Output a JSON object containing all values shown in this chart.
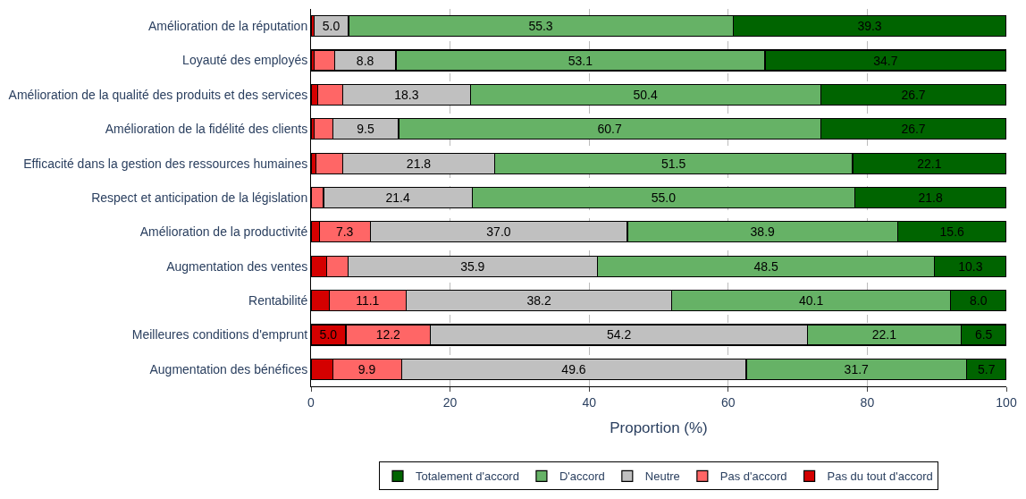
{
  "chart_data": {
    "type": "bar",
    "orientation": "horizontal",
    "stacked": true,
    "xlabel": "Proportion (%)",
    "xlim": [
      0,
      100
    ],
    "xticks": [
      0,
      20,
      40,
      60,
      80,
      100
    ],
    "grid": "x",
    "legend": "bottom",
    "categories": [
      "Amélioration de la réputation",
      "Loyauté des employés",
      "Amélioration de la qualité des produits et des services",
      "Amélioration de la fidélité des clients",
      "Efficacité dans la gestion des ressources humaines",
      "Respect et anticipation de la législation",
      "Amélioration de la productivité",
      "Augmentation des ventes",
      "Rentabilité",
      "Meilleures conditions d'emprunt",
      "Augmentation des bénéfices"
    ],
    "series": [
      {
        "name": "Pas du tout d'accord",
        "color": "#d40000",
        "values": [
          0.4,
          0.4,
          1.0,
          0.4,
          0.7,
          0,
          1.2,
          2.2,
          2.6,
          5.0,
          3.1
        ],
        "value_labels": [
          null,
          null,
          null,
          null,
          null,
          null,
          null,
          null,
          null,
          "5.0",
          null
        ]
      },
      {
        "name": "Pas d'accord",
        "color": "#ff6666",
        "values": [
          0,
          3.0,
          3.6,
          2.7,
          3.9,
          1.8,
          7.3,
          3.1,
          11.1,
          12.2,
          9.9
        ],
        "value_labels": [
          null,
          null,
          null,
          null,
          null,
          null,
          "7.3",
          null,
          "11.1",
          "12.2",
          "9.9"
        ]
      },
      {
        "name": "Neutre",
        "color": "#c0c0c0",
        "values": [
          5.0,
          8.8,
          18.3,
          9.5,
          21.8,
          21.4,
          37.0,
          35.9,
          38.2,
          54.2,
          49.6
        ],
        "value_labels": [
          "5.0",
          "8.8",
          "18.3",
          "9.5",
          "21.8",
          "21.4",
          "37.0",
          "35.9",
          "38.2",
          "54.2",
          "49.6"
        ]
      },
      {
        "name": "D'accord",
        "color": "#66b266",
        "values": [
          55.3,
          53.1,
          50.4,
          60.7,
          51.5,
          55.0,
          38.9,
          48.5,
          40.1,
          22.1,
          31.7
        ],
        "value_labels": [
          "55.3",
          "53.1",
          "50.4",
          "60.7",
          "51.5",
          "55.0",
          "38.9",
          "48.5",
          "40.1",
          "22.1",
          "31.7"
        ]
      },
      {
        "name": "Totalement d'accord",
        "color": "#006400",
        "values": [
          39.3,
          34.7,
          26.7,
          26.7,
          22.1,
          21.8,
          15.6,
          10.3,
          8.0,
          6.5,
          5.7
        ],
        "value_labels": [
          "39.3",
          "34.7",
          "26.7",
          "26.7",
          "22.1",
          "21.8",
          "15.6",
          "10.3",
          "8.0",
          "6.5",
          "5.7"
        ]
      }
    ]
  }
}
